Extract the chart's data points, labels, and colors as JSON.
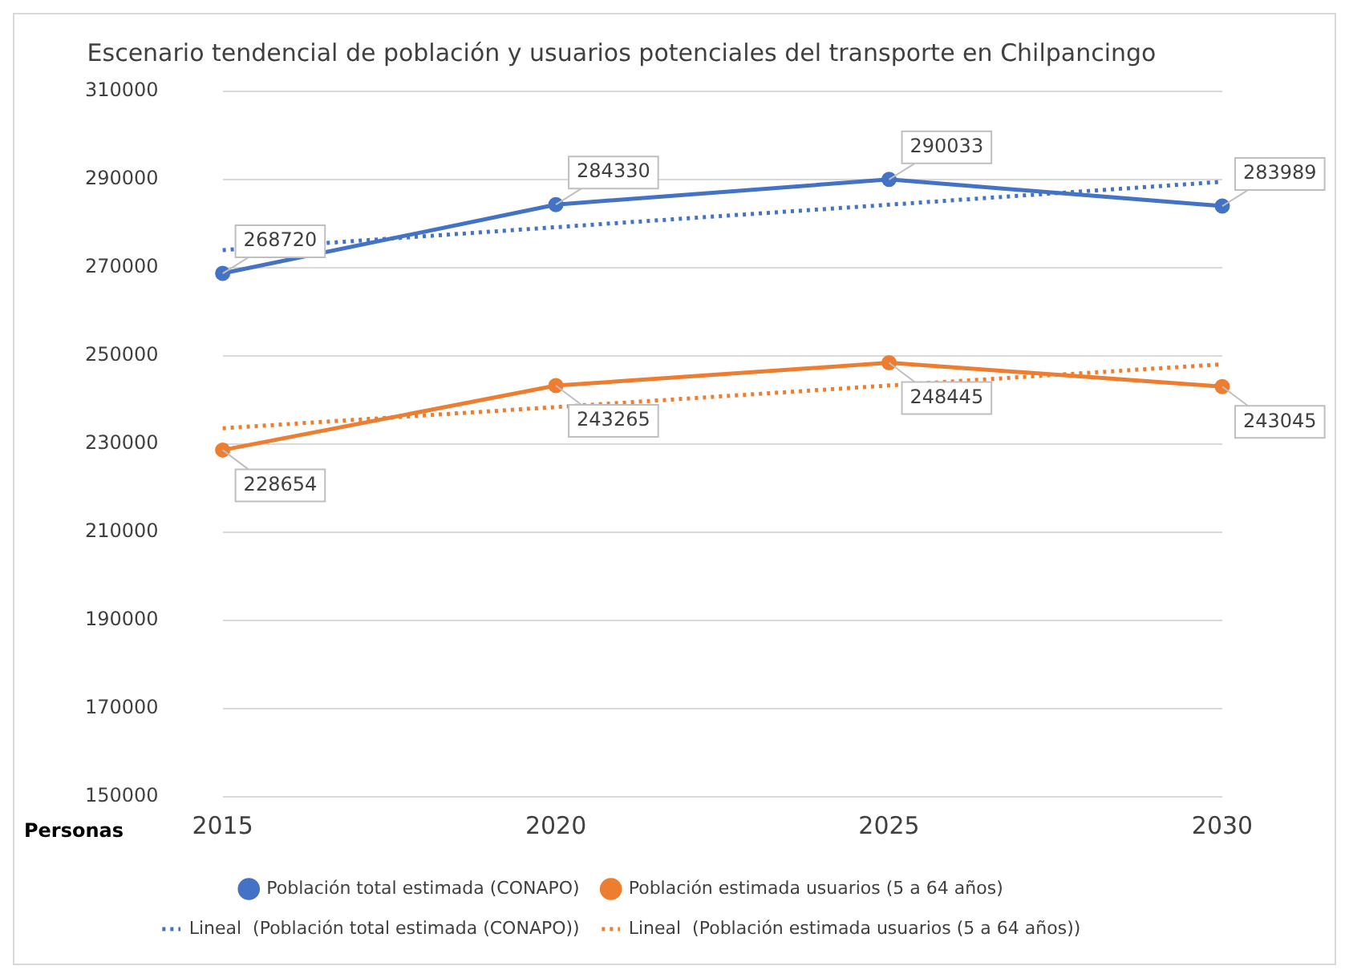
{
  "chart_data": {
    "type": "line",
    "title": "Escenario tendencial de población y usuarios potenciales del transporte en Chilpancingo",
    "ylabel": "Personas",
    "categories": [
      "2015",
      "2020",
      "2025",
      "2030"
    ],
    "ylim": [
      150000,
      310000
    ],
    "yticks": [
      150000,
      170000,
      190000,
      210000,
      230000,
      250000,
      270000,
      290000,
      310000
    ],
    "grid": "y",
    "legend": "bottom",
    "series": [
      {
        "name": "Población total estimada (CONAPO)",
        "color": "#4472c4",
        "values": [
          268720,
          284330,
          290033,
          283989
        ],
        "value_labels": [
          "268720",
          "284330",
          "290033",
          "283989"
        ],
        "marker": "circle",
        "line_style": "solid"
      },
      {
        "name": "Población estimada usuarios (5 a 64 años)",
        "color": "#ed7d31",
        "values": [
          228654,
          243265,
          248445,
          243045
        ],
        "value_labels": [
          "228654",
          "243265",
          "248445",
          "243045"
        ],
        "marker": "circle",
        "line_style": "solid"
      },
      {
        "name": "Lineal  (Población total estimada (CONAPO))",
        "color": "#4472c4",
        "values": [
          274000,
          279200,
          284300,
          289500
        ],
        "marker": "none",
        "line_style": "dotted"
      },
      {
        "name": "Lineal  (Población estimada usuarios (5 a 64 años))",
        "color": "#ed7d31",
        "values": [
          233600,
          238400,
          243300,
          248100
        ],
        "marker": "none",
        "line_style": "dotted"
      }
    ]
  }
}
